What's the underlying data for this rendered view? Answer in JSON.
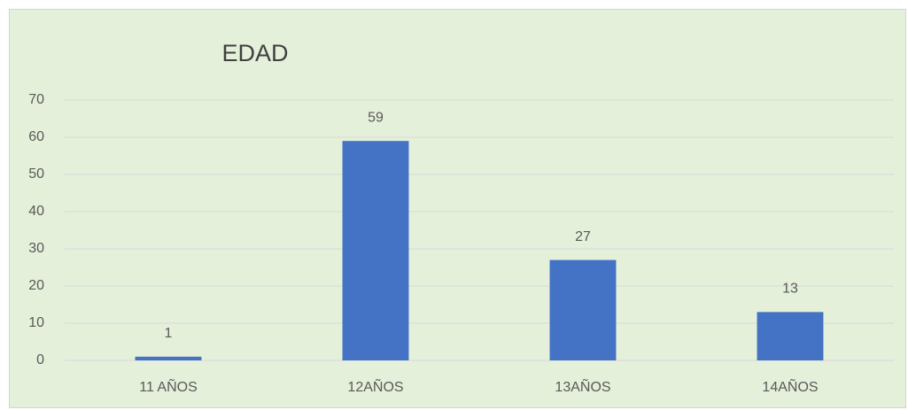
{
  "chart_data": {
    "type": "bar",
    "title": "EDAD",
    "categories": [
      "11 AÑOS",
      "12AÑOS",
      "13AÑOS",
      "14AÑOS"
    ],
    "values": [
      1,
      59,
      27,
      13
    ],
    "color": "#4472c4",
    "ylim": [
      0,
      70
    ],
    "yticks": [
      0,
      10,
      20,
      30,
      40,
      50,
      60,
      70
    ],
    "grid": true
  }
}
